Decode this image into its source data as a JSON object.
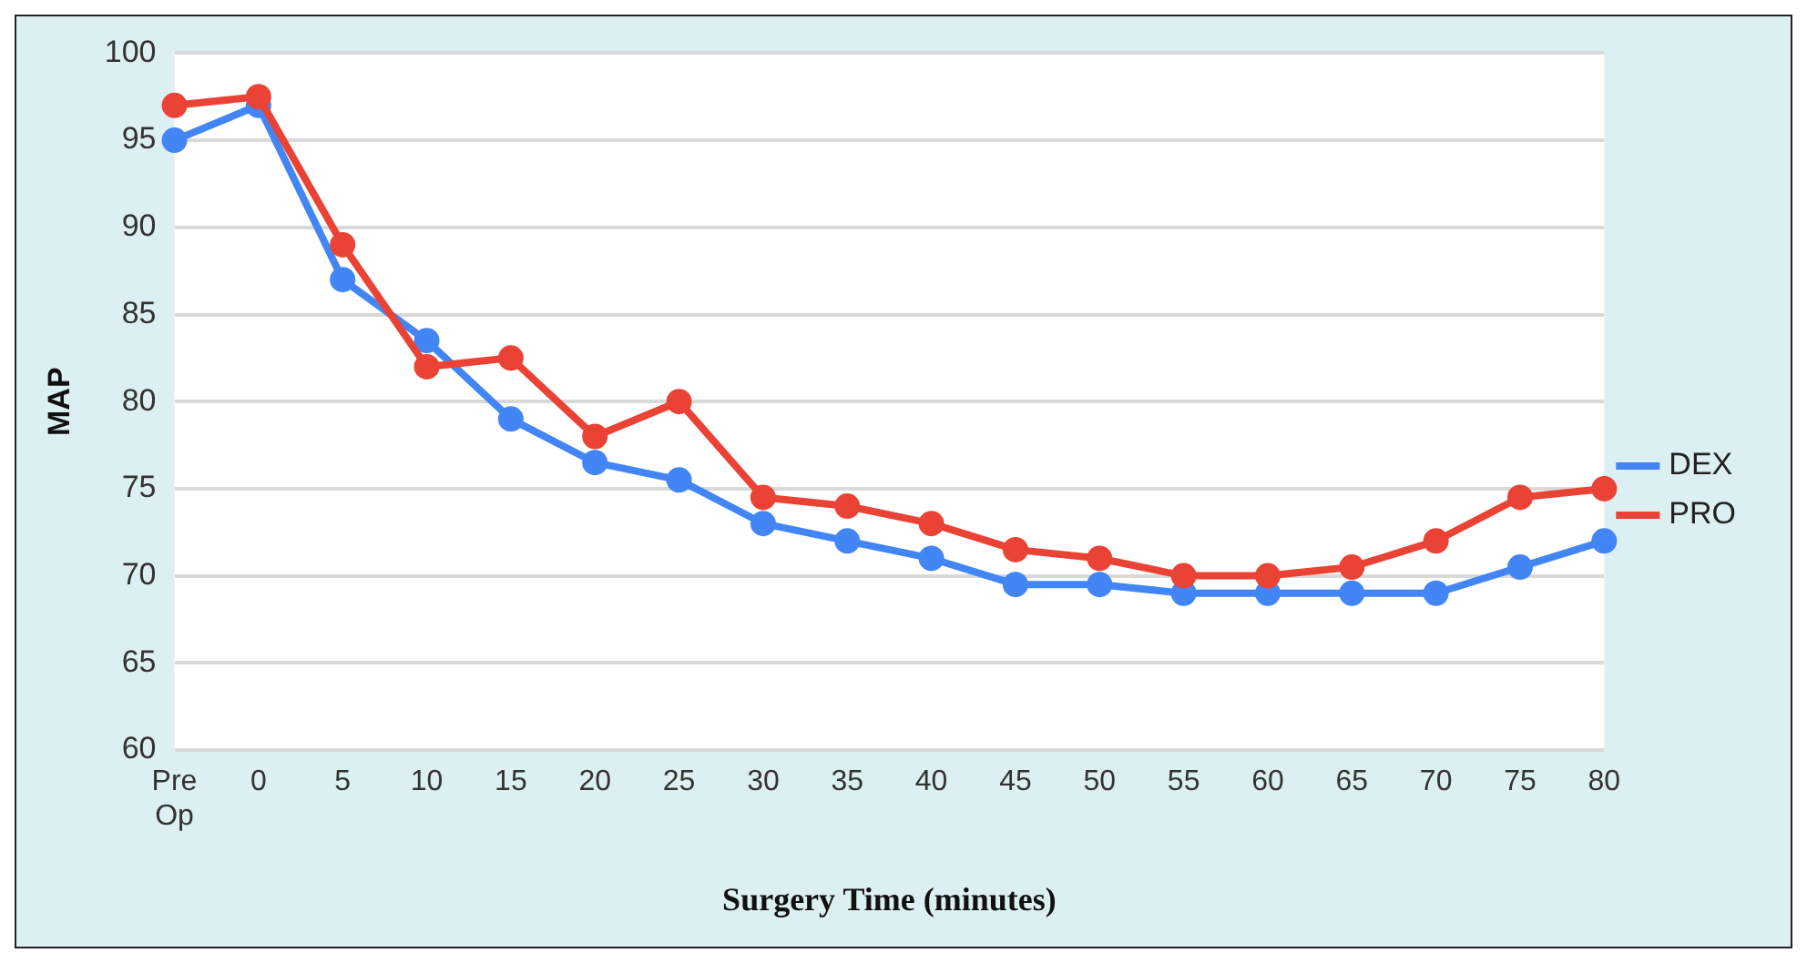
{
  "chart_data": {
    "type": "line",
    "xlabel": "Surgery Time (minutes)",
    "ylabel": "MAP",
    "categories": [
      "Pre Op",
      "0",
      "5",
      "10",
      "15",
      "20",
      "25",
      "30",
      "35",
      "40",
      "45",
      "50",
      "55",
      "60",
      "65",
      "70",
      "75",
      "80"
    ],
    "series": [
      {
        "name": "DEX",
        "color": "#4285f4",
        "values": [
          95,
          97,
          87,
          83.5,
          79,
          76.5,
          75.5,
          73,
          72,
          71,
          69.5,
          69.5,
          69,
          69,
          69,
          69,
          70.5,
          72
        ]
      },
      {
        "name": "PRO",
        "color": "#ea4335",
        "values": [
          97,
          97.5,
          89,
          82,
          82.5,
          78,
          80,
          74.5,
          74,
          73,
          71.5,
          71,
          70,
          70,
          70.5,
          72,
          74.5,
          75
        ]
      }
    ],
    "ylim": [
      60,
      100
    ],
    "yticks": [
      60,
      65,
      70,
      75,
      80,
      85,
      90,
      95,
      100
    ],
    "grid": "y",
    "legend": "right",
    "marker": "circle",
    "line_style": "solid"
  }
}
